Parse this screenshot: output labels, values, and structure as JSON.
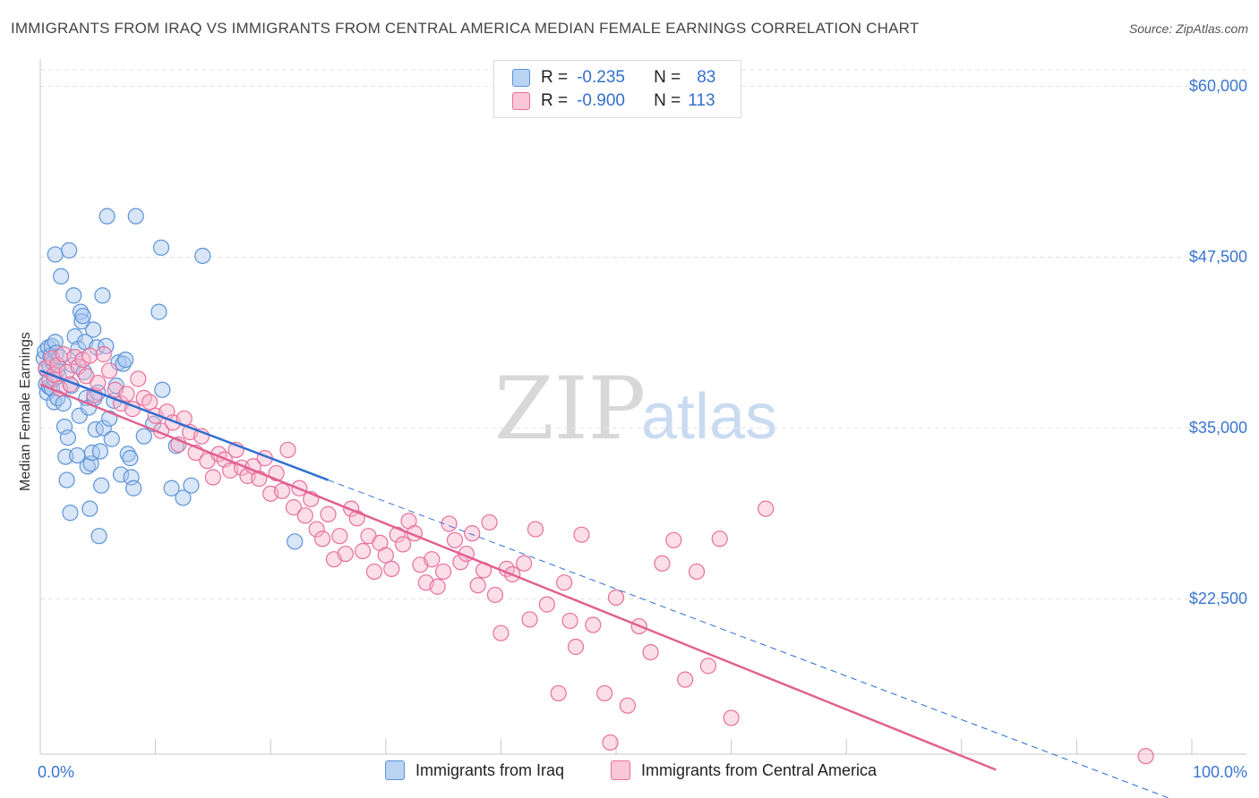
{
  "title": "IMMIGRANTS FROM IRAQ VS IMMIGRANTS FROM CENTRAL AMERICA MEDIAN FEMALE EARNINGS CORRELATION CHART",
  "source": "Source: ZipAtlas.com",
  "watermark": {
    "zip": "ZIP",
    "atlas": "atlas"
  },
  "legend": {
    "series1": {
      "r_label": "R =",
      "r_value": "-0.235",
      "n_label": "N =",
      "n_value": "83"
    },
    "series2": {
      "r_label": "R =",
      "r_value": "-0.900",
      "n_label": "N =",
      "n_value": "113"
    }
  },
  "colors": {
    "iraq_fill": "#a9c8f0",
    "iraq_stroke": "#5b93d8",
    "iraq_line": "#2f6fd1",
    "ca_fill": "#f6b5cb",
    "ca_stroke": "#e86f9b",
    "ca_line": "#e2618f",
    "axis_text": "#3a76d0",
    "grid": "#e3e3e3"
  },
  "chart_data": {
    "type": "scatter",
    "title": "IMMIGRANTS FROM IRAQ VS IMMIGRANTS FROM CENTRAL AMERICA MEDIAN FEMALE EARNINGS CORRELATION CHART",
    "xlabel": "",
    "ylabel": "Median Female Earnings",
    "xlim": [
      0,
      100
    ],
    "ylim": [
      10000,
      61500
    ],
    "x_tick_labels": [
      "0.0%",
      "100.0%"
    ],
    "y_ticks": [
      22500,
      35000,
      47500,
      60000
    ],
    "y_tick_labels": [
      "$22,500",
      "$35,000",
      "$47,500",
      "$60,000"
    ],
    "series": [
      {
        "name": "Immigrants from Iraq",
        "r": -0.235,
        "n": 83,
        "trend": {
          "x0": 0,
          "y0": 39200,
          "x1": 25,
          "y1": 31200,
          "dashed_to_x": 100,
          "dashed_to_y": 7300
        },
        "points": [
          [
            0.3,
            40100
          ],
          [
            0.4,
            40600
          ],
          [
            0.5,
            38200
          ],
          [
            0.5,
            39300
          ],
          [
            0.6,
            37600
          ],
          [
            0.7,
            40900
          ],
          [
            0.8,
            39600
          ],
          [
            0.8,
            38000
          ],
          [
            0.9,
            40300
          ],
          [
            1.0,
            37900
          ],
          [
            1.0,
            41000
          ],
          [
            1.1,
            39800
          ],
          [
            1.2,
            36900
          ],
          [
            1.2,
            38600
          ],
          [
            1.3,
            41300
          ],
          [
            1.4,
            40500
          ],
          [
            1.5,
            39200
          ],
          [
            1.5,
            37200
          ],
          [
            1.6,
            38800
          ],
          [
            1.7,
            40200
          ],
          [
            1.8,
            46100
          ],
          [
            2.0,
            36800
          ],
          [
            2.1,
            35100
          ],
          [
            2.2,
            32900
          ],
          [
            2.3,
            31200
          ],
          [
            2.4,
            34300
          ],
          [
            2.6,
            28800
          ],
          [
            2.7,
            38100
          ],
          [
            2.8,
            39600
          ],
          [
            2.9,
            44700
          ],
          [
            3.0,
            41700
          ],
          [
            3.2,
            33000
          ],
          [
            3.3,
            40800
          ],
          [
            3.4,
            35900
          ],
          [
            3.5,
            43500
          ],
          [
            3.6,
            42800
          ],
          [
            3.7,
            43200
          ],
          [
            3.8,
            39100
          ],
          [
            3.9,
            41300
          ],
          [
            4.0,
            37200
          ],
          [
            4.1,
            32200
          ],
          [
            4.2,
            36500
          ],
          [
            4.3,
            29100
          ],
          [
            4.4,
            32400
          ],
          [
            4.5,
            33200
          ],
          [
            4.6,
            42200
          ],
          [
            4.7,
            37200
          ],
          [
            4.8,
            34900
          ],
          [
            4.9,
            40900
          ],
          [
            5.0,
            37600
          ],
          [
            5.1,
            27100
          ],
          [
            5.2,
            33300
          ],
          [
            5.3,
            30800
          ],
          [
            5.4,
            44700
          ],
          [
            5.5,
            35000
          ],
          [
            5.7,
            41000
          ],
          [
            5.8,
            50500
          ],
          [
            6.0,
            35700
          ],
          [
            6.2,
            34200
          ],
          [
            6.4,
            37000
          ],
          [
            6.6,
            38100
          ],
          [
            6.8,
            39800
          ],
          [
            7.0,
            31600
          ],
          [
            7.2,
            39700
          ],
          [
            7.4,
            40000
          ],
          [
            7.6,
            33100
          ],
          [
            7.8,
            32800
          ],
          [
            7.9,
            31400
          ],
          [
            8.1,
            30600
          ],
          [
            8.3,
            50500
          ],
          [
            9.0,
            34400
          ],
          [
            9.8,
            35300
          ],
          [
            10.5,
            48200
          ],
          [
            10.3,
            43500
          ],
          [
            10.6,
            37800
          ],
          [
            11.4,
            30600
          ],
          [
            11.8,
            33700
          ],
          [
            12.4,
            29900
          ],
          [
            13.1,
            30800
          ],
          [
            14.1,
            47600
          ],
          [
            22.1,
            26700
          ],
          [
            1.3,
            47700
          ],
          [
            2.5,
            48000
          ]
        ]
      },
      {
        "name": "Immigrants from Central America",
        "r": -0.9,
        "n": 113,
        "trend": {
          "x0": 0,
          "y0": 38200,
          "x1": 83,
          "y1": 10000
        },
        "points": [
          [
            0.5,
            39400
          ],
          [
            0.8,
            38500
          ],
          [
            1.0,
            40100
          ],
          [
            1.2,
            38900
          ],
          [
            1.5,
            39600
          ],
          [
            1.7,
            37900
          ],
          [
            2.0,
            40400
          ],
          [
            2.3,
            39100
          ],
          [
            2.6,
            38200
          ],
          [
            3.0,
            40200
          ],
          [
            3.3,
            39500
          ],
          [
            3.7,
            40000
          ],
          [
            4.0,
            38800
          ],
          [
            4.3,
            40300
          ],
          [
            4.7,
            37400
          ],
          [
            5.0,
            38300
          ],
          [
            5.5,
            40400
          ],
          [
            6.0,
            39200
          ],
          [
            6.5,
            37800
          ],
          [
            7.0,
            36800
          ],
          [
            7.5,
            37500
          ],
          [
            8.0,
            36400
          ],
          [
            8.5,
            38600
          ],
          [
            9.0,
            37200
          ],
          [
            9.5,
            36900
          ],
          [
            10.0,
            35900
          ],
          [
            10.5,
            34800
          ],
          [
            11.0,
            36200
          ],
          [
            11.5,
            35400
          ],
          [
            12.0,
            33800
          ],
          [
            12.5,
            35700
          ],
          [
            13.0,
            34700
          ],
          [
            13.5,
            33200
          ],
          [
            14.0,
            34400
          ],
          [
            14.5,
            32600
          ],
          [
            15.0,
            31400
          ],
          [
            15.5,
            33100
          ],
          [
            16.0,
            32700
          ],
          [
            16.5,
            31900
          ],
          [
            17.0,
            33400
          ],
          [
            17.5,
            32100
          ],
          [
            18.0,
            31500
          ],
          [
            18.5,
            32200
          ],
          [
            19.0,
            31300
          ],
          [
            19.5,
            32800
          ],
          [
            20.0,
            30200
          ],
          [
            20.5,
            31700
          ],
          [
            21.0,
            30400
          ],
          [
            21.5,
            33400
          ],
          [
            22.0,
            29200
          ],
          [
            22.5,
            30600
          ],
          [
            23.0,
            28600
          ],
          [
            23.5,
            29800
          ],
          [
            24.0,
            27600
          ],
          [
            24.5,
            26900
          ],
          [
            25.0,
            28700
          ],
          [
            25.5,
            25400
          ],
          [
            26.0,
            27100
          ],
          [
            26.5,
            25800
          ],
          [
            27.0,
            29100
          ],
          [
            27.5,
            28400
          ],
          [
            28.0,
            26000
          ],
          [
            28.5,
            27100
          ],
          [
            29.0,
            24500
          ],
          [
            29.5,
            26600
          ],
          [
            30.0,
            25700
          ],
          [
            30.5,
            24700
          ],
          [
            31.0,
            27200
          ],
          [
            31.5,
            26500
          ],
          [
            32.0,
            28200
          ],
          [
            32.5,
            27300
          ],
          [
            33.0,
            25000
          ],
          [
            33.5,
            23700
          ],
          [
            34.0,
            25400
          ],
          [
            34.5,
            23400
          ],
          [
            35.0,
            24500
          ],
          [
            35.5,
            28000
          ],
          [
            36.0,
            26800
          ],
          [
            36.5,
            25200
          ],
          [
            37.0,
            25800
          ],
          [
            37.5,
            27300
          ],
          [
            38.0,
            23500
          ],
          [
            38.5,
            24600
          ],
          [
            39.0,
            28100
          ],
          [
            39.5,
            22800
          ],
          [
            40.0,
            20000
          ],
          [
            40.5,
            24700
          ],
          [
            41.0,
            24300
          ],
          [
            42.0,
            25100
          ],
          [
            42.5,
            21000
          ],
          [
            43.0,
            27600
          ],
          [
            44.0,
            22100
          ],
          [
            45.0,
            15600
          ],
          [
            45.5,
            23700
          ],
          [
            46.0,
            20900
          ],
          [
            46.5,
            19000
          ],
          [
            47.0,
            27200
          ],
          [
            48.0,
            20600
          ],
          [
            49.0,
            15600
          ],
          [
            49.5,
            12000
          ],
          [
            50.0,
            22600
          ],
          [
            51.0,
            14700
          ],
          [
            52.0,
            20500
          ],
          [
            53.0,
            18600
          ],
          [
            54.0,
            25100
          ],
          [
            55.0,
            26800
          ],
          [
            56.0,
            16600
          ],
          [
            57.0,
            24500
          ],
          [
            58.0,
            17600
          ],
          [
            59.0,
            26900
          ],
          [
            60.0,
            13800
          ],
          [
            63.0,
            29100
          ],
          [
            96.0,
            11000
          ]
        ]
      }
    ]
  },
  "x_axis": {
    "left_label": "0.0%",
    "right_label": "100.0%"
  },
  "bottom_legend": {
    "series1": "Immigrants from Iraq",
    "series2": "Immigrants from Central America"
  }
}
